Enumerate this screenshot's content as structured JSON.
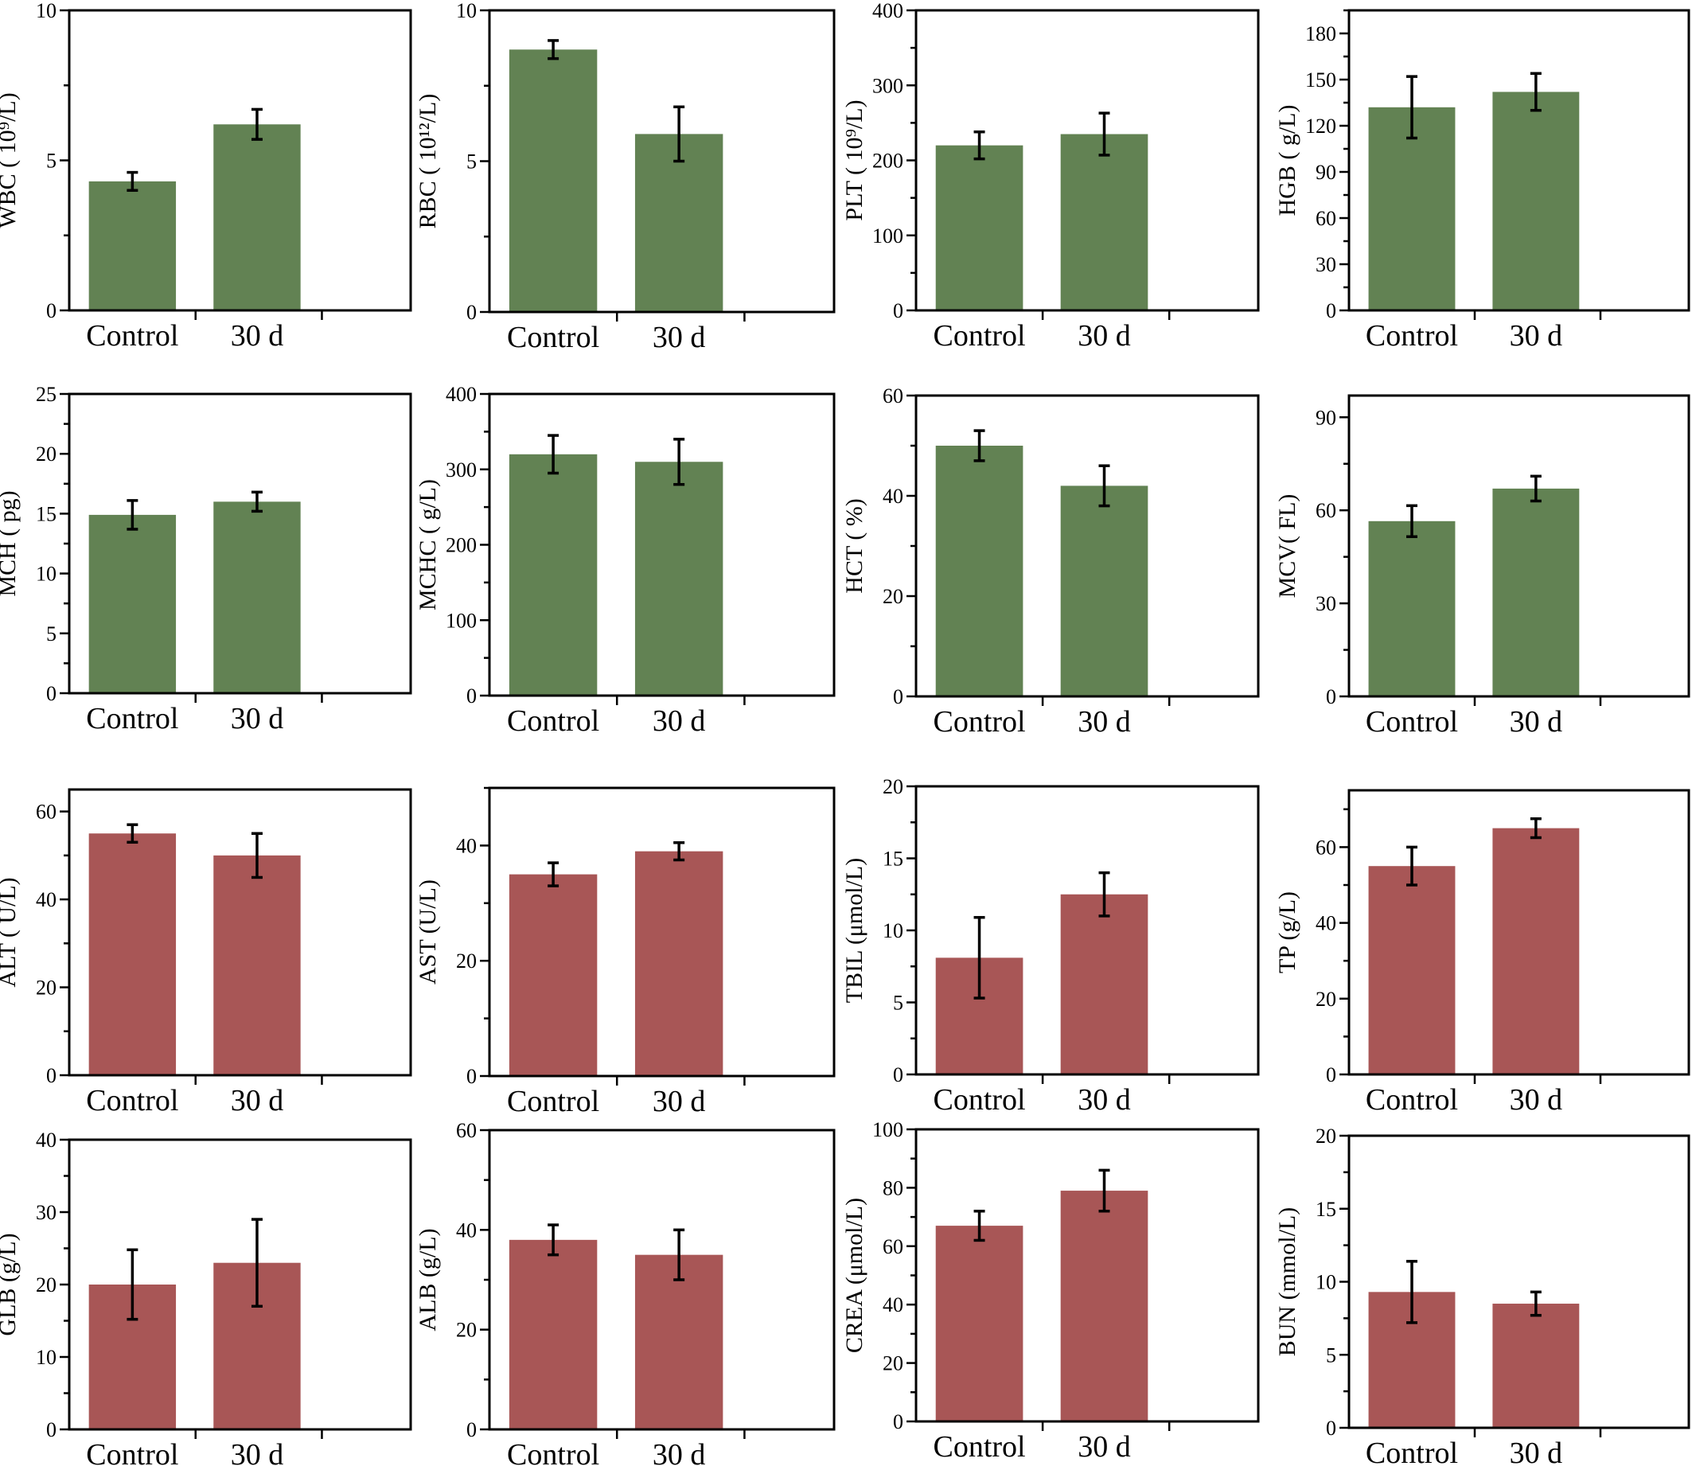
{
  "colors": {
    "hematology": "#628253",
    "biochemistry": "#a85656"
  },
  "chart_data": [
    {
      "type": "bar",
      "ylabel": "WBC ( 10⁹/L)",
      "categories": [
        "Control",
        "30 d"
      ],
      "values": [
        4.3,
        6.2
      ],
      "errors": [
        0.3,
        0.5
      ],
      "ylim": [
        0,
        10
      ],
      "yticks": [
        0,
        5,
        10
      ],
      "color": "hematology"
    },
    {
      "type": "bar",
      "ylabel": "RBC ( 10¹²/L)",
      "categories": [
        "Control",
        "30 d"
      ],
      "values": [
        8.7,
        5.9
      ],
      "errors": [
        0.3,
        0.9
      ],
      "ylim": [
        0,
        10
      ],
      "yticks": [
        0,
        5,
        10
      ],
      "color": "hematology"
    },
    {
      "type": "bar",
      "ylabel": "PLT ( 10⁹/L)",
      "categories": [
        "Control",
        "30 d"
      ],
      "values": [
        220,
        235
      ],
      "errors": [
        18,
        28
      ],
      "ylim": [
        0,
        400
      ],
      "yticks": [
        0,
        100,
        200,
        300,
        400
      ],
      "color": "hematology"
    },
    {
      "type": "bar",
      "ylabel": "HGB ( g/L)",
      "categories": [
        "Control",
        "30 d"
      ],
      "values": [
        132,
        142
      ],
      "errors": [
        20,
        12
      ],
      "ylim": [
        0,
        195
      ],
      "yticks": [
        0,
        30,
        60,
        90,
        120,
        150,
        180
      ],
      "color": "hematology"
    },
    {
      "type": "bar",
      "ylabel": "MCH ( pg)",
      "categories": [
        "Control",
        "30 d"
      ],
      "values": [
        14.9,
        16.0
      ],
      "errors": [
        1.2,
        0.8
      ],
      "ylim": [
        0,
        25
      ],
      "yticks": [
        0,
        5,
        10,
        15,
        20,
        25
      ],
      "color": "hematology"
    },
    {
      "type": "bar",
      "ylabel": "MCHC ( g/L)",
      "categories": [
        "Control",
        "30 d"
      ],
      "values": [
        320,
        310
      ],
      "errors": [
        25,
        30
      ],
      "ylim": [
        0,
        400
      ],
      "yticks": [
        0,
        100,
        200,
        300,
        400
      ],
      "color": "hematology"
    },
    {
      "type": "bar",
      "ylabel": "HCT ( %)",
      "categories": [
        "Control",
        "30 d"
      ],
      "values": [
        50,
        42
      ],
      "errors": [
        3,
        4
      ],
      "ylim": [
        0,
        60
      ],
      "yticks": [
        0,
        20,
        40,
        60
      ],
      "color": "hematology"
    },
    {
      "type": "bar",
      "ylabel": "MCV( FL)",
      "categories": [
        "Control",
        "30 d"
      ],
      "values": [
        56.5,
        67
      ],
      "errors": [
        5,
        4
      ],
      "ylim": [
        0,
        97
      ],
      "yticks": [
        0,
        30,
        60,
        90
      ],
      "color": "hematology"
    },
    {
      "type": "bar",
      "ylabel": "ALT ( U/L)",
      "categories": [
        "Control",
        "30 d"
      ],
      "values": [
        55,
        50
      ],
      "errors": [
        2,
        5
      ],
      "ylim": [
        0,
        65
      ],
      "yticks": [
        0,
        20,
        40,
        60
      ],
      "color": "biochemistry"
    },
    {
      "type": "bar",
      "ylabel": "AST (U/L)",
      "categories": [
        "Control",
        "30 d"
      ],
      "values": [
        35,
        39
      ],
      "errors": [
        2,
        1.5
      ],
      "ylim": [
        0,
        50
      ],
      "yticks": [
        0,
        20,
        40
      ],
      "color": "biochemistry"
    },
    {
      "type": "bar",
      "ylabel": "TBIL (μmol/L)",
      "categories": [
        "Control",
        "30 d"
      ],
      "values": [
        8.1,
        12.5
      ],
      "errors": [
        2.8,
        1.5
      ],
      "ylim": [
        0,
        20
      ],
      "yticks": [
        0,
        5,
        10,
        15,
        20
      ],
      "color": "biochemistry"
    },
    {
      "type": "bar",
      "ylabel": "TP (g/L)",
      "categories": [
        "Control",
        "30 d"
      ],
      "values": [
        55,
        65
      ],
      "errors": [
        5,
        2.5
      ],
      "ylim": [
        0,
        75
      ],
      "yticks": [
        0,
        20,
        40,
        60
      ],
      "color": "biochemistry"
    },
    {
      "type": "bar",
      "ylabel": "GLB (g/L)",
      "categories": [
        "Control",
        "30 d"
      ],
      "values": [
        20,
        23
      ],
      "errors": [
        4.8,
        6
      ],
      "ylim": [
        0,
        40
      ],
      "yticks": [
        0,
        10,
        20,
        30,
        40
      ],
      "color": "biochemistry"
    },
    {
      "type": "bar",
      "ylabel": "ALB (g/L)",
      "categories": [
        "Control",
        "30 d"
      ],
      "values": [
        38,
        35
      ],
      "errors": [
        3,
        5
      ],
      "ylim": [
        0,
        60
      ],
      "yticks": [
        0,
        20,
        40,
        60
      ],
      "color": "biochemistry"
    },
    {
      "type": "bar",
      "ylabel": "CREA (μmol/L)",
      "categories": [
        "Control",
        "30 d"
      ],
      "values": [
        67,
        79
      ],
      "errors": [
        5,
        7
      ],
      "ylim": [
        0,
        100
      ],
      "yticks": [
        0,
        20,
        40,
        60,
        80,
        100
      ],
      "color": "biochemistry"
    },
    {
      "type": "bar",
      "ylabel": "BUN (mmol/L)",
      "categories": [
        "Control",
        "30 d"
      ],
      "values": [
        9.3,
        8.5
      ],
      "errors": [
        2.1,
        0.8
      ],
      "ylim": [
        0,
        20
      ],
      "yticks": [
        0,
        5,
        10,
        15,
        20
      ],
      "color": "biochemistry"
    }
  ]
}
